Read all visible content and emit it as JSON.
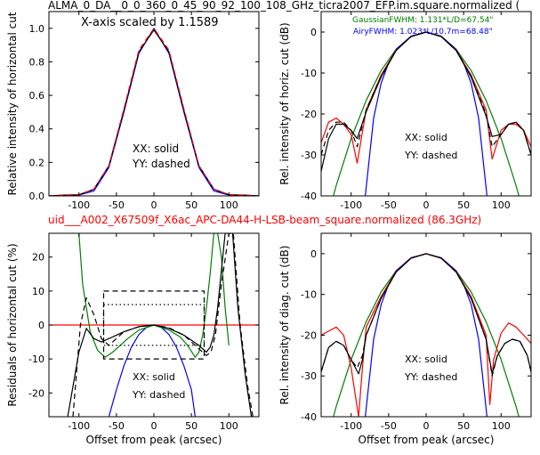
{
  "figure": {
    "title_top": "ALMA_0_DA__0_0_360_0_45_90_92_100_108_GHz_ticra2007_EFP.im.square.normalized (",
    "title_mid": "uid___A002_X67509f_X6ac_APC-DA44-H-LSB-beam_square.normalized (86.3GHz)",
    "title_mid_color": "#ff0000"
  },
  "chart_data": [
    {
      "type": "line",
      "panel": "top-left",
      "title": "",
      "xlabel": "",
      "ylabel": "Relative intensity of horizontal cut",
      "xlim": [
        -140,
        140
      ],
      "ylim": [
        0,
        1.1
      ],
      "xticks": [
        -100,
        -50,
        0,
        50,
        100
      ],
      "yticks": [
        0.0,
        0.2,
        0.4,
        0.6,
        0.8,
        1.0
      ],
      "annotations": [
        "X-axis scaled by 1.1589",
        "XX: solid",
        "YY: dashed"
      ],
      "series": [
        {
          "color": "#0000ff",
          "style": "solid",
          "x": [
            -140,
            -120,
            -100,
            -80,
            -60,
            -40,
            -20,
            0,
            20,
            40,
            60,
            80,
            100,
            120,
            140
          ],
          "y": [
            0.0,
            0.003,
            0.005,
            0.03,
            0.17,
            0.5,
            0.85,
            1.0,
            0.85,
            0.5,
            0.17,
            0.03,
            0.005,
            0.003,
            0.0
          ]
        },
        {
          "color": "#000000",
          "style": "solid",
          "x": [
            -140,
            -120,
            -100,
            -80,
            -60,
            -40,
            -20,
            0,
            20,
            40,
            60,
            80,
            100,
            120,
            140
          ],
          "y": [
            0.0,
            0.005,
            0.007,
            0.04,
            0.18,
            0.51,
            0.86,
            0.99,
            0.86,
            0.51,
            0.18,
            0.04,
            0.007,
            0.005,
            0.0
          ]
        },
        {
          "color": "#ff0000",
          "style": "dashed",
          "x": [
            -140,
            -120,
            -100,
            -80,
            -60,
            -40,
            -20,
            0,
            20,
            40,
            60,
            80,
            100,
            120,
            140
          ],
          "y": [
            0.0,
            0.005,
            0.008,
            0.04,
            0.18,
            0.52,
            0.87,
            1.0,
            0.87,
            0.52,
            0.18,
            0.04,
            0.008,
            0.005,
            0.0
          ]
        }
      ]
    },
    {
      "type": "line",
      "panel": "top-right",
      "title": "",
      "xlabel": "",
      "ylabel": "Rel. intensity of horiz. cut (dB)",
      "xlim": [
        -140,
        140
      ],
      "ylim": [
        -40,
        5
      ],
      "xticks": [
        -100,
        -50,
        0,
        50,
        100
      ],
      "yticks": [
        0,
        -10,
        -20,
        -30,
        -40
      ],
      "annotations": [
        "GaussianFWHM: 1.131*L/D=67.54\"",
        "AiryFWHM: 1.023*L/10.7m=68.48\"",
        "XX: solid",
        "YY: dashed"
      ],
      "series": [
        {
          "color": "#008000",
          "style": "solid",
          "x": [
            -140,
            -120,
            -100,
            -80,
            -60,
            -40,
            -20,
            0,
            20,
            40,
            60,
            80,
            100,
            120,
            140
          ],
          "y": [
            -51,
            -37.5,
            -26,
            -16.7,
            -9.4,
            -4.2,
            -1.05,
            0,
            -1.05,
            -4.2,
            -9.4,
            -16.7,
            -26,
            -37.5,
            -51
          ]
        },
        {
          "color": "#0000ff",
          "style": "solid",
          "x": [
            -84,
            -80,
            -70,
            -60,
            -50,
            -40,
            -20,
            0,
            20,
            40,
            50,
            60,
            70,
            80,
            84
          ],
          "y": [
            -45,
            -38,
            -21,
            -12.5,
            -7.5,
            -4.2,
            -1.0,
            0,
            -1.0,
            -4.2,
            -7.5,
            -12.5,
            -21,
            -38,
            -45
          ]
        },
        {
          "color": "#ff0000",
          "style": "solid",
          "x": [
            -140,
            -130,
            -120,
            -110,
            -100,
            -92,
            -80,
            -60,
            -40,
            -20,
            0,
            20,
            40,
            60,
            80,
            88,
            100,
            110,
            120,
            130,
            140
          ],
          "y": [
            -27,
            -22,
            -21,
            -22.5,
            -25,
            -32,
            -19,
            -10.5,
            -4.4,
            -1.1,
            0,
            -1.1,
            -4.4,
            -10.5,
            -19,
            -31,
            -24,
            -22.5,
            -22.5,
            -24,
            -28
          ]
        },
        {
          "color": "#000000",
          "style": "solid",
          "x": [
            -140,
            -130,
            -120,
            -110,
            -100,
            -92,
            -80,
            -60,
            -40,
            -20,
            0,
            20,
            40,
            60,
            80,
            88,
            100,
            110,
            120,
            130,
            140
          ],
          "y": [
            -34,
            -26,
            -22.5,
            -22.5,
            -24,
            -26,
            -19.5,
            -11,
            -4.5,
            -1.1,
            0,
            -1.1,
            -4.5,
            -11,
            -20.5,
            -25.5,
            -25,
            -22.5,
            -22,
            -24,
            -30
          ]
        },
        {
          "color": "#000000",
          "style": "dashed",
          "x": [
            -140,
            -130,
            -120,
            -110,
            -100,
            -92,
            -80,
            -60,
            -40,
            -20,
            0,
            20,
            40,
            60,
            80,
            88,
            100,
            110,
            120,
            130,
            140
          ],
          "y": [
            -30,
            -24,
            -22,
            -22,
            -24,
            -28,
            -19,
            -10.8,
            -4.4,
            -1.1,
            0,
            -1.1,
            -4.4,
            -10.8,
            -20,
            -28,
            -25,
            -22.5,
            -22,
            -24,
            -30
          ]
        }
      ]
    },
    {
      "type": "line",
      "panel": "bottom-left",
      "title": "",
      "xlabel": "Offset from peak (arcsec)",
      "ylabel": "Residuals of horizontal cut (%)",
      "xlim": [
        -140,
        140
      ],
      "ylim": [
        -27,
        27
      ],
      "xticks": [
        -100,
        -50,
        0,
        50,
        100
      ],
      "yticks": [
        20,
        10,
        0,
        -10,
        -20
      ],
      "annotations": [
        "XX: solid",
        "YY: dashed"
      ],
      "series": [
        {
          "color": "#ff0000",
          "style": "solid",
          "x": [
            -140,
            140
          ],
          "y": [
            0,
            0
          ]
        },
        {
          "color": "#0000ff",
          "style": "solid",
          "x": [
            -60,
            -50,
            -40,
            -30,
            -20,
            -10,
            0,
            10,
            20,
            30,
            40,
            50,
            55
          ],
          "y": [
            -27,
            -19,
            -12,
            -6.5,
            -2.8,
            -0.7,
            0,
            -0.7,
            -2.8,
            -6.5,
            -12,
            -19,
            -27
          ]
        },
        {
          "color": "#008000",
          "style": "solid",
          "x": [
            -100,
            -95,
            -85,
            -75,
            -65,
            -55,
            -45,
            -35,
            -20,
            0,
            20,
            35,
            45,
            55,
            60,
            65,
            70,
            75,
            80,
            85,
            90,
            95,
            100
          ],
          "y": [
            27,
            12,
            -2,
            -7.5,
            -9.5,
            -8,
            -6,
            -4,
            -1.5,
            0,
            -1.5,
            -3.5,
            -6,
            -9.5,
            -8,
            -3,
            5,
            15,
            27,
            27,
            20,
            5,
            -6
          ]
        },
        {
          "color": "#000000",
          "style": "solid",
          "x": [
            -115,
            -100,
            -90,
            -80,
            -70,
            -60,
            -40,
            -20,
            0,
            20,
            40,
            60,
            70,
            75,
            80,
            85,
            95,
            105,
            112,
            122,
            130
          ],
          "y": [
            -27,
            -8,
            -1,
            -4,
            -5,
            -4,
            -2,
            -0.5,
            0,
            -1,
            -3,
            -6,
            -8,
            -6.5,
            -3,
            5,
            27,
            27,
            5,
            -15,
            -27
          ]
        },
        {
          "color": "#000000",
          "style": "dashed",
          "x": [
            -108,
            -98,
            -90,
            -80,
            -70,
            -60,
            -40,
            -20,
            0,
            20,
            40,
            60,
            70,
            76,
            82,
            90,
            100,
            106,
            115,
            125,
            132
          ],
          "y": [
            -27,
            0,
            8,
            3,
            -4,
            -6,
            -2,
            -0.5,
            0,
            -0.8,
            -3,
            -7,
            -9,
            -8,
            -3,
            12,
            27,
            27,
            0,
            -18,
            -27
          ]
        },
        {
          "color": "#000000",
          "style": "dashed",
          "x": [
            -67,
            67,
            67,
            -67,
            -67
          ],
          "y": [
            10,
            10,
            -10,
            -10,
            10
          ]
        },
        {
          "color": "#000000",
          "style": "dotted",
          "x": [
            -67,
            67,
            67,
            -67,
            -67
          ],
          "y": [
            6,
            6,
            -6,
            -6,
            6
          ]
        }
      ]
    },
    {
      "type": "line",
      "panel": "bottom-right",
      "title": "",
      "xlabel": "Offset from peak (arcsec)",
      "ylabel": "Rel. intensity of diag. cut (dB)",
      "xlim": [
        -140,
        140
      ],
      "ylim": [
        -40,
        5
      ],
      "xticks": [
        -100,
        -50,
        0,
        50,
        100
      ],
      "yticks": [
        0,
        -10,
        -20,
        -30,
        -40
      ],
      "annotations": [
        "XX: solid",
        "YY: dashed"
      ],
      "series": [
        {
          "color": "#008000",
          "style": "solid",
          "x": [
            -140,
            -120,
            -100,
            -80,
            -60,
            -40,
            -20,
            0,
            20,
            40,
            60,
            80,
            100,
            120,
            140
          ],
          "y": [
            -51,
            -37.5,
            -26,
            -16.7,
            -9.4,
            -4.2,
            -1.05,
            0,
            -1.05,
            -4.2,
            -9.4,
            -16.7,
            -26,
            -37.5,
            -51
          ]
        },
        {
          "color": "#0000ff",
          "style": "solid",
          "x": [
            -84,
            -80,
            -70,
            -60,
            -50,
            -40,
            -20,
            0,
            20,
            40,
            50,
            60,
            70,
            80,
            84
          ],
          "y": [
            -45,
            -38,
            -21,
            -12.5,
            -7.5,
            -4.2,
            -1.0,
            0,
            -1.0,
            -4.2,
            -7.5,
            -12.5,
            -21,
            -38,
            -45
          ]
        },
        {
          "color": "#ff0000",
          "style": "solid",
          "x": [
            -140,
            -130,
            -120,
            -110,
            -100,
            -90,
            -85,
            -80,
            -60,
            -40,
            -20,
            0,
            20,
            40,
            60,
            80,
            85,
            90,
            100,
            110,
            120,
            130,
            140
          ],
          "y": [
            -20,
            -19,
            -18,
            -20,
            -28,
            -40,
            -28,
            -18,
            -10.5,
            -4.4,
            -1.1,
            0,
            -1.1,
            -4.4,
            -10.5,
            -20,
            -37,
            -26,
            -19.5,
            -17,
            -18,
            -20,
            -22
          ]
        },
        {
          "color": "#000000",
          "style": "solid",
          "x": [
            -140,
            -130,
            -120,
            -110,
            -100,
            -90,
            -85,
            -80,
            -60,
            -40,
            -20,
            0,
            20,
            40,
            60,
            80,
            88,
            95,
            105,
            115,
            125,
            135,
            140
          ],
          "y": [
            -29,
            -23,
            -21.5,
            -22.5,
            -26,
            -29.5,
            -26,
            -20,
            -11,
            -4.5,
            -1.1,
            0,
            -1.1,
            -4.5,
            -11,
            -21,
            -29.5,
            -25,
            -22,
            -21,
            -21.5,
            -25,
            -29
          ]
        },
        {
          "color": "#000000",
          "style": "dashed",
          "x": [
            -140,
            -130,
            -120,
            -110,
            -100,
            -92,
            -85,
            -80,
            -60,
            -40,
            -20,
            0,
            20,
            40,
            60,
            80,
            88,
            95,
            105,
            115,
            125,
            135,
            140
          ],
          "y": [
            -29,
            -23,
            -21.5,
            -22.5,
            -26,
            -28,
            -25,
            -20,
            -11,
            -4.5,
            -1.1,
            0,
            -1.1,
            -4.5,
            -11,
            -21,
            -30,
            -25,
            -22,
            -21,
            -21.5,
            -25,
            -29
          ]
        }
      ]
    }
  ]
}
